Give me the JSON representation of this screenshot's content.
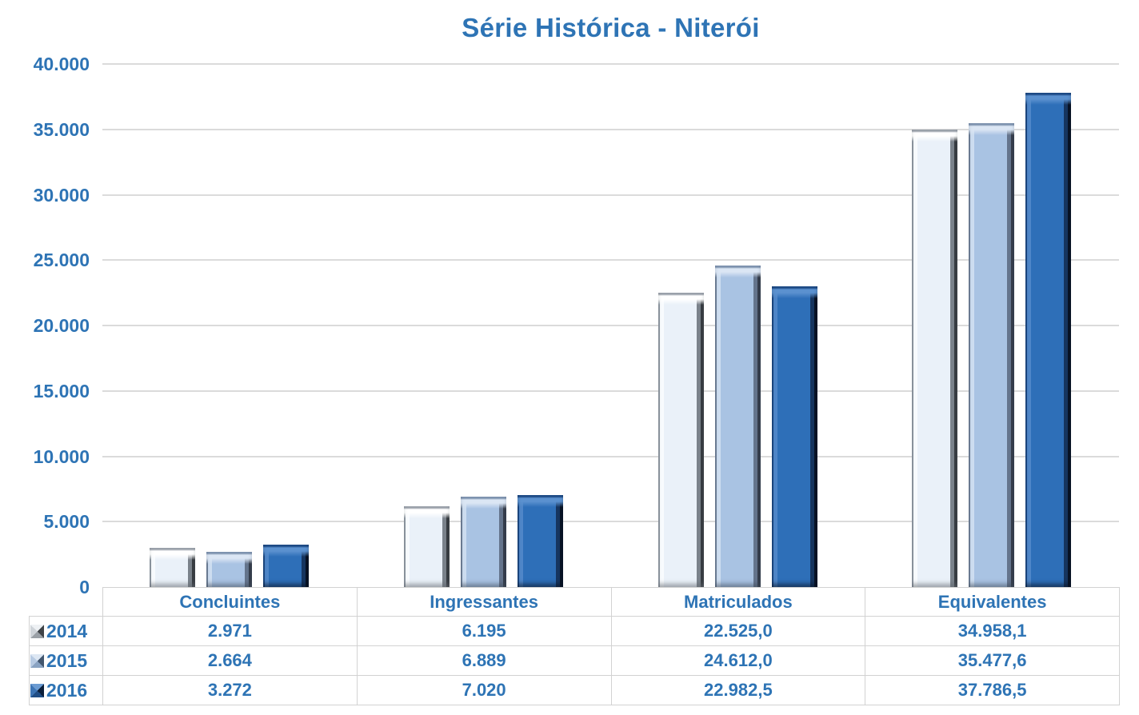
{
  "title": "Série Histórica - Niterói",
  "colors": {
    "accent_text": "#2E74B5",
    "grid": "#DBDBDB",
    "table_border": "#D2D2D2",
    "series": [
      {
        "name": "2014",
        "color": "#EAF1F9"
      },
      {
        "name": "2015",
        "color": "#A9C3E3"
      },
      {
        "name": "2016",
        "color": "#2E6FB8"
      }
    ]
  },
  "y_axis": {
    "ticks": [
      {
        "label": "40.000",
        "value": 40000
      },
      {
        "label": "35.000",
        "value": 35000
      },
      {
        "label": "30.000",
        "value": 30000
      },
      {
        "label": "25.000",
        "value": 25000
      },
      {
        "label": "20.000",
        "value": 20000
      },
      {
        "label": "15.000",
        "value": 15000
      },
      {
        "label": "10.000",
        "value": 10000
      },
      {
        "label": "5.000",
        "value": 5000
      },
      {
        "label": "0",
        "value": 0
      }
    ]
  },
  "table": {
    "column_headers": [
      "Concluintes",
      "Ingressantes",
      "Matriculados",
      "Equivalentes"
    ],
    "rows": [
      {
        "label": "2014",
        "cells": [
          "2.971",
          "6.195",
          "22.525,0",
          "34.958,1"
        ]
      },
      {
        "label": "2015",
        "cells": [
          "2.664",
          "6.889",
          "24.612,0",
          "35.477,6"
        ]
      },
      {
        "label": "2016",
        "cells": [
          "3.272",
          "7.020",
          "22.982,5",
          "37.786,5"
        ]
      }
    ]
  },
  "chart_data": {
    "type": "bar",
    "title": "Série Histórica - Niterói",
    "categories": [
      "Concluintes",
      "Ingressantes",
      "Matriculados",
      "Equivalentes"
    ],
    "series": [
      {
        "name": "2014",
        "values": [
          2971,
          6195,
          22525.0,
          34958.1
        ]
      },
      {
        "name": "2015",
        "values": [
          2664,
          6889,
          24612.0,
          35477.6
        ]
      },
      {
        "name": "2016",
        "values": [
          3272,
          7020,
          22982.5,
          37786.5
        ]
      }
    ],
    "xlabel": "",
    "ylabel": "",
    "ylim": [
      0,
      40000
    ],
    "ytick_interval": 5000,
    "grid": "horizontal",
    "legend_position": "table-row-headers",
    "bar_style": "3d-bevel"
  }
}
